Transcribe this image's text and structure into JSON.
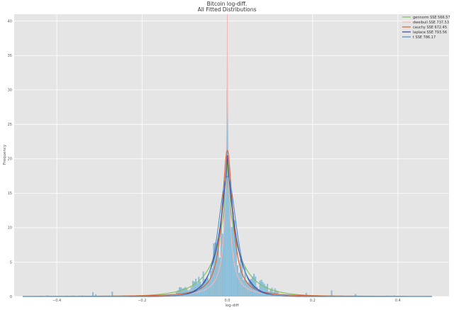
{
  "chart_data": {
    "type": "histogram-with-fitted-lines",
    "title": "Bitcoin log-diff.",
    "subtitle": "All Fitted Distributions",
    "xlabel": "log-diff",
    "ylabel": "Frequency",
    "xlim": [
      -0.5,
      0.52
    ],
    "ylim": [
      0,
      41
    ],
    "xticks": [
      -0.4,
      -0.2,
      0.0,
      0.2,
      0.4
    ],
    "yticks": [
      0,
      5,
      10,
      15,
      20,
      25,
      30,
      35,
      40
    ],
    "grid": true,
    "legend_position": "top-right",
    "histogram": {
      "color": "#89bcd6",
      "bin_width": 0.0035,
      "range": [
        -0.45,
        0.4
      ],
      "peak_value": 30,
      "peak_location": 0.0
    },
    "series": [
      {
        "name": "gennorm SSE 566.57",
        "color": "#7fbf55",
        "dist": "gennorm",
        "peak": 19.6,
        "scale": 0.024,
        "shape": 0.75
      },
      {
        "name": "dweibull SSE 737.53",
        "color": "#f2b8b8",
        "dist": "dweibull",
        "peak": 41,
        "scale": 0.02,
        "shape": 0.45
      },
      {
        "name": "cauchy SSE 672.45",
        "color": "#d9602e",
        "dist": "cauchy",
        "peak": 21.2,
        "scale": 0.015
      },
      {
        "name": "laplace SSE 793.56",
        "color": "#3a3fa0",
        "dist": "laplace",
        "peak": 20.5,
        "scale": 0.024
      },
      {
        "name": "t SSE 786.17",
        "color": "#4a8cc8",
        "dist": "t",
        "peak": 17.5,
        "scale": 0.022
      }
    ]
  }
}
